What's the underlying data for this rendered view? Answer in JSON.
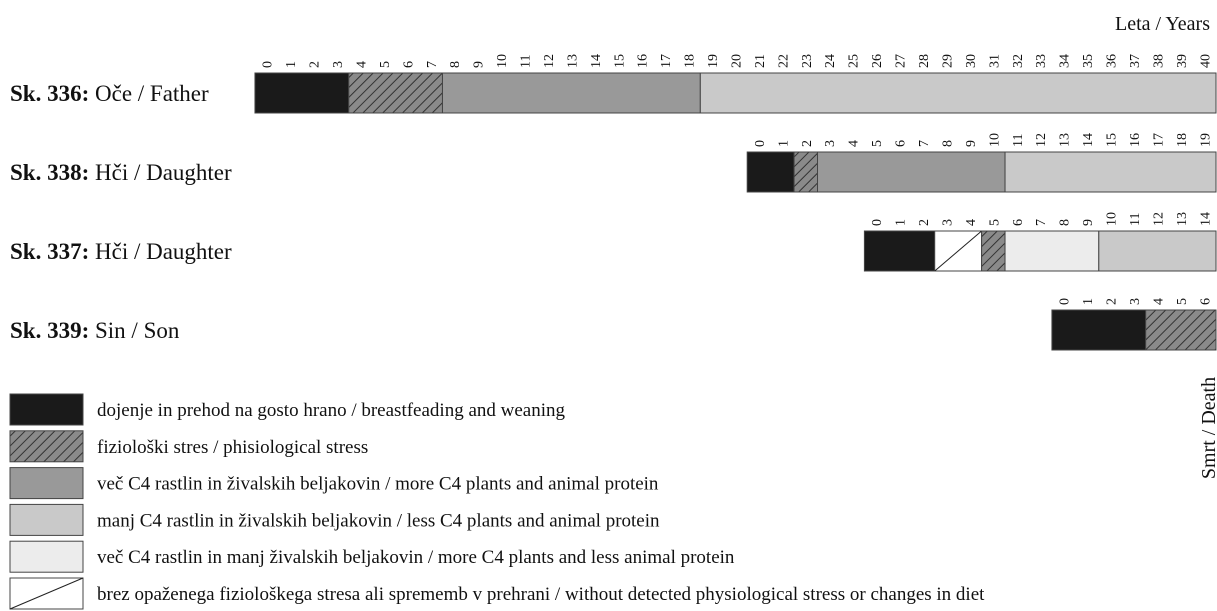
{
  "chart_data": {
    "type": "timeline",
    "axis_label": "Leta / Years",
    "end_label": "Smrt / Death",
    "legend": [
      {
        "label": "dojenje in prehod na gosto hrano / breastfeading and weaning",
        "style": "black"
      },
      {
        "label": "fiziološki stres / phisiological stress",
        "style": "hatch"
      },
      {
        "label": "več C4 rastlin in živalskih beljakovin / more C4 plants and animal protein",
        "style": "dark-gray"
      },
      {
        "label": "manj C4 rastlin in živalskih beljakovin / less C4 plants and animal protein",
        "style": "light-gray"
      },
      {
        "label": "več C4 rastlin in manj živalskih beljakovin / more C4 plants and less animal protein",
        "style": "pale"
      },
      {
        "label": "brez opaženega fiziološkega stresa ali sprememb v prehrani / without detected physiological stress or changes in diet",
        "style": "none"
      }
    ],
    "individuals": [
      {
        "id": "Sk. 336:",
        "name": " Oče / Father",
        "ticks": [
          0,
          1,
          2,
          3,
          4,
          5,
          6,
          7,
          8,
          9,
          10,
          11,
          12,
          13,
          14,
          15,
          16,
          17,
          18,
          19,
          20,
          21,
          22,
          23,
          24,
          25,
          26,
          27,
          28,
          29,
          30,
          31,
          32,
          33,
          34,
          35,
          36,
          37,
          38,
          39,
          40
        ],
        "segments": [
          {
            "start": 0,
            "end": 4,
            "category": 0
          },
          {
            "start": 4,
            "end": 8,
            "category": 1
          },
          {
            "start": 8,
            "end": 19,
            "category": 2
          },
          {
            "start": 19,
            "end": 41,
            "category": 3
          }
        ]
      },
      {
        "id": "Sk. 338:",
        "name": " Hči / Daughter",
        "ticks": [
          0,
          1,
          2,
          3,
          4,
          5,
          6,
          7,
          8,
          9,
          10,
          11,
          12,
          13,
          14,
          15,
          16,
          17,
          18,
          19
        ],
        "segments": [
          {
            "start": 0,
            "end": 2,
            "category": 0
          },
          {
            "start": 2,
            "end": 3,
            "category": 1
          },
          {
            "start": 3,
            "end": 11,
            "category": 2
          },
          {
            "start": 11,
            "end": 20,
            "category": 3
          }
        ]
      },
      {
        "id": "Sk. 337:",
        "name": " Hči / Daughter",
        "ticks": [
          0,
          1,
          2,
          3,
          4,
          5,
          6,
          7,
          8,
          9,
          10,
          11,
          12,
          13,
          14
        ],
        "segments": [
          {
            "start": 0,
            "end": 3,
            "category": 0
          },
          {
            "start": 3,
            "end": 5,
            "category": 5
          },
          {
            "start": 5,
            "end": 6,
            "category": 1
          },
          {
            "start": 6,
            "end": 10,
            "category": 4
          },
          {
            "start": 10,
            "end": 15,
            "category": 3
          }
        ]
      },
      {
        "id": "Sk. 339:",
        "name": " Sin / Son",
        "ticks": [
          0,
          1,
          2,
          3,
          4,
          5,
          6
        ],
        "segments": [
          {
            "start": 0,
            "end": 4,
            "category": 0
          },
          {
            "start": 4,
            "end": 7,
            "category": 1
          }
        ]
      }
    ]
  }
}
